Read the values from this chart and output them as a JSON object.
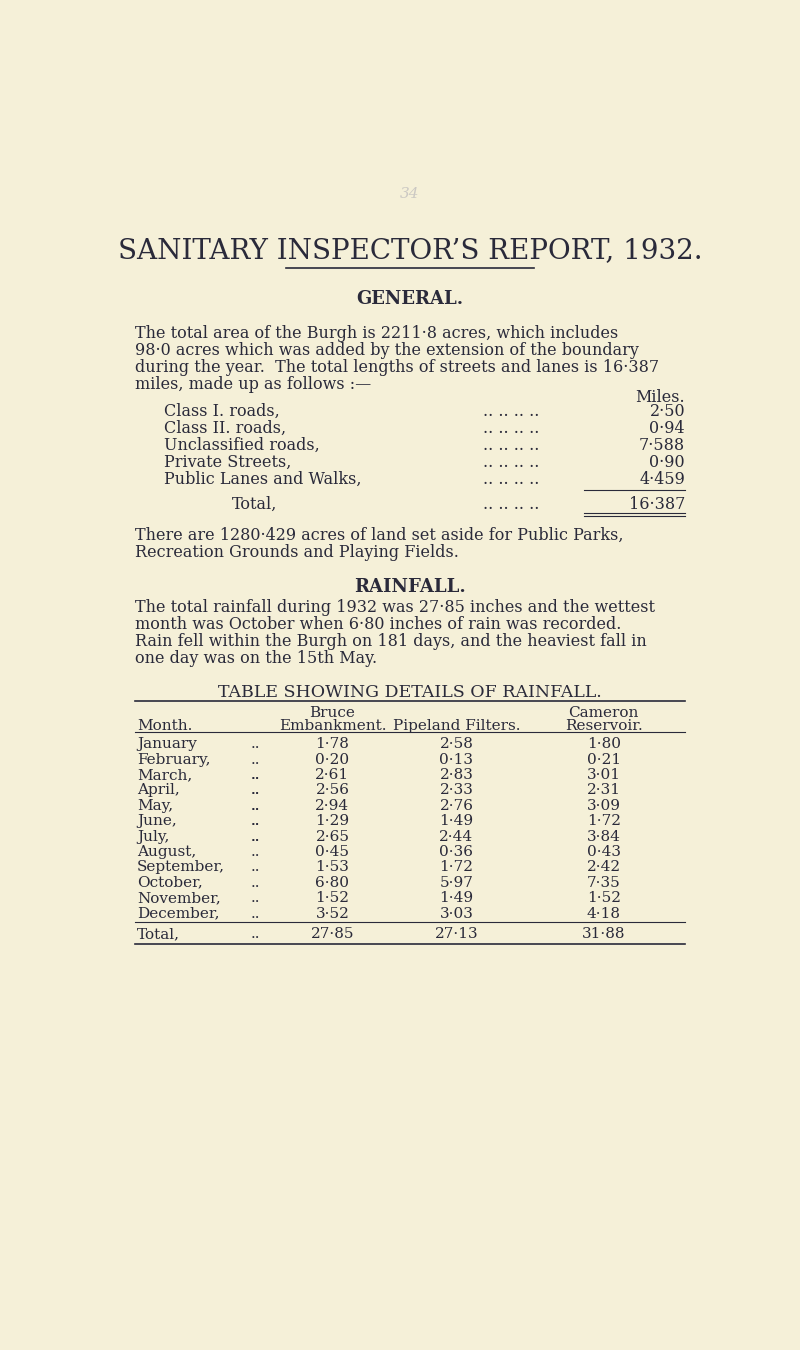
{
  "bg_color": "#f5f0d8",
  "text_color": "#2a2a3a",
  "title": "SANITARY INSPECTOR’S REPORT, 1932.",
  "general_heading": "GENERAL.",
  "general_para1": "The total area of the Burgh is 2211·8 acres, which includes",
  "general_para2": "98·0 acres which was added by the extension of the boundary",
  "general_para3": "during the year.  The total lengths of streets and lanes is 16·387",
  "general_para4": "miles, made up as follows :—",
  "miles_label": "Miles.",
  "road_labels": [
    "Class I. roads,",
    "Class II. roads,",
    "Unclassified roads,",
    "Private Streets,",
    "Public Lanes and Walks,"
  ],
  "road_values": [
    "2·50",
    "0·94",
    "7·588",
    "0·90",
    "4·459"
  ],
  "total_label": "Total,",
  "total_value": "16·387",
  "parks_para1": "There are 1280·429 acres of land set aside for Public Parks,",
  "parks_para2": "Recreation Grounds and Playing Fields.",
  "rainfall_heading": "RAINFALL.",
  "rainfall_para1": "The total rainfall during 1932 was 27·85 inches and the wettest",
  "rainfall_para2": "month was October when 6·80 inches of rain was recorded.",
  "rainfall_para3": "Rain fell within the Burgh on 181 days, and the heaviest fall in",
  "rainfall_para4": "one day was on the 15th May.",
  "table_heading": "TABLE SHOWING DETAILS OF RAINFALL.",
  "months": [
    "January",
    "February,",
    "March,",
    "April,",
    "May,",
    "June,",
    "July,",
    "August,",
    "September,",
    "October,",
    "November,",
    "December,"
  ],
  "bruce": [
    1.78,
    0.2,
    2.61,
    2.56,
    2.94,
    1.29,
    2.65,
    0.45,
    1.53,
    6.8,
    1.52,
    3.52
  ],
  "pipeland": [
    2.58,
    0.13,
    2.83,
    2.33,
    2.76,
    1.49,
    2.44,
    0.36,
    1.72,
    5.97,
    1.49,
    3.03
  ],
  "cameron": [
    1.8,
    0.21,
    3.01,
    2.31,
    3.09,
    1.72,
    3.84,
    0.43,
    2.42,
    7.35,
    1.52,
    4.18
  ],
  "totals": [
    "27·85",
    "27·13",
    "31·88"
  ]
}
